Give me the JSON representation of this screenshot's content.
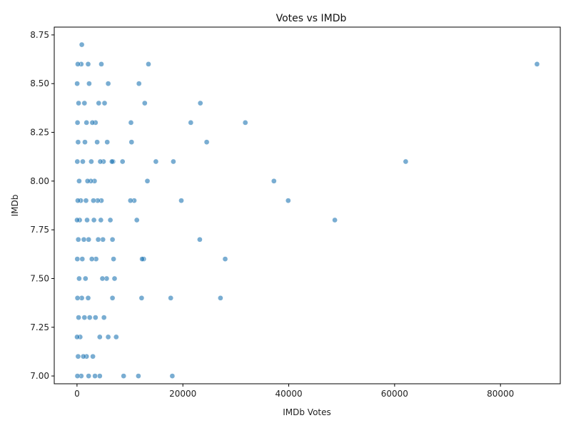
{
  "chart_data": {
    "type": "scatter",
    "title": "Votes vs IMDb",
    "xlabel": "IMDb Votes",
    "ylabel": "IMDb",
    "xlim": [
      -4300,
      91300
    ],
    "ylim": [
      6.96,
      8.79
    ],
    "xticks": [
      0,
      20000,
      40000,
      60000,
      80000
    ],
    "yticks": [
      7.0,
      7.25,
      7.5,
      7.75,
      8.0,
      8.25,
      8.5,
      8.75
    ],
    "xtick_labels": [
      "0",
      "20000",
      "40000",
      "60000",
      "80000"
    ],
    "ytick_labels": [
      "7.00",
      "7.25",
      "7.50",
      "7.75",
      "8.00",
      "8.25",
      "8.50",
      "8.75"
    ],
    "grid": false,
    "legend": "none",
    "marker_color": "#1f77b4",
    "points": [
      {
        "x": 86900,
        "y": 8.6
      },
      {
        "x": 62100,
        "y": 8.1
      },
      {
        "x": 48700,
        "y": 7.8
      },
      {
        "x": 39900,
        "y": 7.9
      },
      {
        "x": 37200,
        "y": 8.0
      },
      {
        "x": 31800,
        "y": 8.3
      },
      {
        "x": 28000,
        "y": 7.6
      },
      {
        "x": 27100,
        "y": 7.4
      },
      {
        "x": 24500,
        "y": 8.2
      },
      {
        "x": 23300,
        "y": 8.4
      },
      {
        "x": 23200,
        "y": 7.7
      },
      {
        "x": 21500,
        "y": 8.3
      },
      {
        "x": 19700,
        "y": 7.9
      },
      {
        "x": 18200,
        "y": 8.1
      },
      {
        "x": 18000,
        "y": 7.0
      },
      {
        "x": 17700,
        "y": 7.4
      },
      {
        "x": 14900,
        "y": 8.1
      },
      {
        "x": 13500,
        "y": 8.6
      },
      {
        "x": 13300,
        "y": 8.0
      },
      {
        "x": 12800,
        "y": 8.4
      },
      {
        "x": 12600,
        "y": 7.6
      },
      {
        "x": 12300,
        "y": 7.6
      },
      {
        "x": 12200,
        "y": 7.4
      },
      {
        "x": 11700,
        "y": 8.5
      },
      {
        "x": 11600,
        "y": 7.0
      },
      {
        "x": 11300,
        "y": 7.8
      },
      {
        "x": 10800,
        "y": 7.9
      },
      {
        "x": 10300,
        "y": 8.2
      },
      {
        "x": 10200,
        "y": 8.3
      },
      {
        "x": 10100,
        "y": 7.9
      },
      {
        "x": 8800,
        "y": 7.0
      },
      {
        "x": 8600,
        "y": 8.1
      },
      {
        "x": 7400,
        "y": 7.2
      },
      {
        "x": 7100,
        "y": 7.5
      },
      {
        "x": 6900,
        "y": 7.6
      },
      {
        "x": 6800,
        "y": 8.1
      },
      {
        "x": 6700,
        "y": 7.7
      },
      {
        "x": 6700,
        "y": 7.4
      },
      {
        "x": 6600,
        "y": 8.1
      },
      {
        "x": 6300,
        "y": 7.8
      },
      {
        "x": 5900,
        "y": 8.5
      },
      {
        "x": 5900,
        "y": 7.2
      },
      {
        "x": 5700,
        "y": 8.2
      },
      {
        "x": 5600,
        "y": 7.5
      },
      {
        "x": 5200,
        "y": 8.4
      },
      {
        "x": 5100,
        "y": 7.3
      },
      {
        "x": 5000,
        "y": 8.1
      },
      {
        "x": 4900,
        "y": 7.7
      },
      {
        "x": 4800,
        "y": 7.5
      },
      {
        "x": 4600,
        "y": 8.6
      },
      {
        "x": 4600,
        "y": 7.9
      },
      {
        "x": 4500,
        "y": 7.8
      },
      {
        "x": 4400,
        "y": 8.1
      },
      {
        "x": 4300,
        "y": 7.2
      },
      {
        "x": 4300,
        "y": 7.0
      },
      {
        "x": 4100,
        "y": 8.4
      },
      {
        "x": 4000,
        "y": 7.7
      },
      {
        "x": 3900,
        "y": 7.9
      },
      {
        "x": 3800,
        "y": 8.2
      },
      {
        "x": 3600,
        "y": 7.6
      },
      {
        "x": 3500,
        "y": 8.3
      },
      {
        "x": 3500,
        "y": 7.3
      },
      {
        "x": 3400,
        "y": 7.0
      },
      {
        "x": 3300,
        "y": 8.0
      },
      {
        "x": 3200,
        "y": 7.8
      },
      {
        "x": 3100,
        "y": 7.9
      },
      {
        "x": 3000,
        "y": 7.1
      },
      {
        "x": 2900,
        "y": 8.3
      },
      {
        "x": 2800,
        "y": 7.6
      },
      {
        "x": 2700,
        "y": 8.1
      },
      {
        "x": 2600,
        "y": 8.0
      },
      {
        "x": 2400,
        "y": 7.3
      },
      {
        "x": 2300,
        "y": 8.5
      },
      {
        "x": 2200,
        "y": 7.7
      },
      {
        "x": 2200,
        "y": 7.0
      },
      {
        "x": 2100,
        "y": 8.6
      },
      {
        "x": 2100,
        "y": 7.4
      },
      {
        "x": 2000,
        "y": 8.0
      },
      {
        "x": 1900,
        "y": 7.8
      },
      {
        "x": 1800,
        "y": 8.3
      },
      {
        "x": 1800,
        "y": 7.1
      },
      {
        "x": 1700,
        "y": 7.9
      },
      {
        "x": 1600,
        "y": 7.5
      },
      {
        "x": 1500,
        "y": 8.2
      },
      {
        "x": 1400,
        "y": 8.4
      },
      {
        "x": 1400,
        "y": 7.3
      },
      {
        "x": 1300,
        "y": 7.7
      },
      {
        "x": 1200,
        "y": 7.1
      },
      {
        "x": 1100,
        "y": 8.1
      },
      {
        "x": 1000,
        "y": 7.6
      },
      {
        "x": 900,
        "y": 8.7
      },
      {
        "x": 900,
        "y": 7.4
      },
      {
        "x": 800,
        "y": 8.6
      },
      {
        "x": 800,
        "y": 7.0
      },
      {
        "x": 700,
        "y": 7.9
      },
      {
        "x": 600,
        "y": 7.2
      },
      {
        "x": 500,
        "y": 7.8
      },
      {
        "x": 400,
        "y": 8.0
      },
      {
        "x": 400,
        "y": 7.5
      },
      {
        "x": 300,
        "y": 8.4
      },
      {
        "x": 300,
        "y": 7.3
      },
      {
        "x": 250,
        "y": 7.7
      },
      {
        "x": 200,
        "y": 8.2
      },
      {
        "x": 200,
        "y": 7.1
      },
      {
        "x": 150,
        "y": 8.6
      },
      {
        "x": 150,
        "y": 7.9
      },
      {
        "x": 100,
        "y": 8.3
      },
      {
        "x": 100,
        "y": 7.4
      },
      {
        "x": 80,
        "y": 7.0
      },
      {
        "x": 60,
        "y": 8.1
      },
      {
        "x": 50,
        "y": 7.6
      },
      {
        "x": 30,
        "y": 8.5
      },
      {
        "x": 20,
        "y": 7.8
      },
      {
        "x": 10,
        "y": 7.2
      }
    ]
  }
}
